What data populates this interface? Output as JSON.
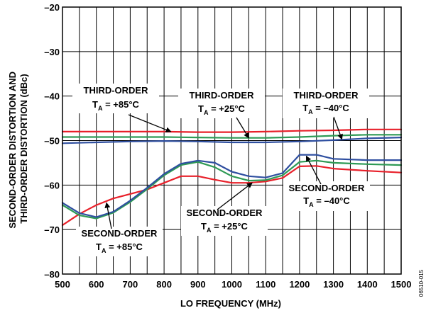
{
  "chart_data": {
    "type": "line",
    "xlabel": "LO FREQUENCY (MHz)",
    "ylabel_lines": [
      "SECOND-ORDER DISTORTION AND",
      "THIRD-ORDER DISTORTION (dBc)"
    ],
    "xlim": [
      500,
      1500
    ],
    "ylim": [
      -80,
      -20
    ],
    "x_ticks": [
      500,
      600,
      700,
      800,
      900,
      1000,
      1100,
      1200,
      1300,
      1400,
      1500
    ],
    "x_tick_labels": [
      "500",
      "600",
      "700",
      "800",
      "900",
      "1000",
      "1100",
      "1200",
      "1300",
      "1400",
      "1500"
    ],
    "y_ticks": [
      -80,
      -70,
      -60,
      -50,
      -40,
      -30,
      -20
    ],
    "y_tick_labels": [
      "–80",
      "–70",
      "–60",
      "–50",
      "–40",
      "–30",
      "–20"
    ],
    "x_minor_step": 50,
    "grid": true,
    "figure_id": "06510-015",
    "series": [
      {
        "color": "#e8202a",
        "x": [
          500,
          600,
          700,
          800,
          900,
          1000,
          1100,
          1200,
          1300,
          1400,
          1500
        ],
        "y": [
          -48.0,
          -48.0,
          -48.0,
          -48.0,
          -48.1,
          -48.1,
          -48.0,
          -47.8,
          -47.7,
          -47.5,
          -47.5
        ]
      },
      {
        "color": "#2e9a55",
        "x": [
          500,
          600,
          700,
          800,
          900,
          1000,
          1100,
          1200,
          1300,
          1400,
          1500
        ],
        "y": [
          -49.2,
          -49.2,
          -49.2,
          -49.2,
          -49.3,
          -49.4,
          -49.4,
          -49.2,
          -48.9,
          -48.7,
          -48.7
        ]
      },
      {
        "color": "#2f4fa0",
        "x": [
          500,
          600,
          700,
          800,
          900,
          1000,
          1100,
          1200,
          1300,
          1400,
          1500
        ],
        "y": [
          -50.6,
          -50.4,
          -50.2,
          -50.1,
          -50.2,
          -50.4,
          -50.4,
          -50.2,
          -49.9,
          -49.5,
          -49.3
        ]
      },
      {
        "color": "#e8202a",
        "x": [
          500,
          550,
          600,
          650,
          700,
          750,
          800,
          850,
          900,
          950,
          1000,
          1050,
          1100,
          1150,
          1200,
          1250,
          1300,
          1400,
          1500
        ],
        "y": [
          -69.0,
          -66.5,
          -64.5,
          -63.0,
          -62.0,
          -61.0,
          -59.5,
          -58.0,
          -58.0,
          -58.8,
          -59.5,
          -59.5,
          -59.2,
          -58.4,
          -55.8,
          -55.7,
          -56.3,
          -56.8,
          -57.2
        ]
      },
      {
        "color": "#2e9a55",
        "x": [
          500,
          550,
          600,
          650,
          700,
          750,
          800,
          850,
          900,
          950,
          1000,
          1050,
          1100,
          1150,
          1200,
          1250,
          1300,
          1400,
          1500
        ],
        "y": [
          -64.5,
          -66.8,
          -67.5,
          -66.2,
          -63.8,
          -60.9,
          -57.8,
          -55.5,
          -54.8,
          -56.0,
          -58.0,
          -59.0,
          -58.9,
          -57.8,
          -54.8,
          -54.5,
          -55.0,
          -55.3,
          -55.5
        ]
      },
      {
        "color": "#2f4fa0",
        "x": [
          500,
          550,
          600,
          650,
          700,
          750,
          800,
          850,
          900,
          950,
          1000,
          1050,
          1100,
          1150,
          1200,
          1250,
          1300,
          1400,
          1500
        ],
        "y": [
          -64.0,
          -66.3,
          -67.2,
          -66.0,
          -63.5,
          -60.6,
          -57.5,
          -55.2,
          -54.5,
          -55.0,
          -57.0,
          -58.0,
          -58.3,
          -57.3,
          -53.2,
          -53.2,
          -54.1,
          -54.4,
          -54.4
        ]
      }
    ],
    "annotations": [
      {
        "line1": "THIRD-ORDER",
        "line2_main": "T",
        "line2_sub": "A",
        "line2_rest": " = +85°C",
        "arrow_to": [
          820,
          -48.0
        ]
      },
      {
        "line1": "THIRD-ORDER",
        "line2_main": "T",
        "line2_sub": "A",
        "line2_rest": " = +25°C",
        "arrow_to": [
          1050,
          -49.4
        ]
      },
      {
        "line1": "THIRD-ORDER",
        "line2_main": "T",
        "line2_sub": "A",
        "line2_rest": " = –40°C",
        "arrow_to": [
          1325,
          -49.7
        ]
      },
      {
        "line1": "SECOND-ORDER",
        "line2_main": "T",
        "line2_sub": "A",
        "line2_rest": " = +85°C",
        "arrow_to": [
          630,
          -64.0
        ]
      },
      {
        "line1": "SECOND-ORDER",
        "line2_main": "T",
        "line2_sub": "A",
        "line2_rest": " = +25°C",
        "arrow_to": [
          1060,
          -59.5
        ]
      },
      {
        "line1": "SECOND-ORDER",
        "line2_main": "T",
        "line2_sub": "A",
        "line2_rest": " = –40°C",
        "arrow_to": [
          1220,
          -53.5
        ]
      }
    ]
  }
}
